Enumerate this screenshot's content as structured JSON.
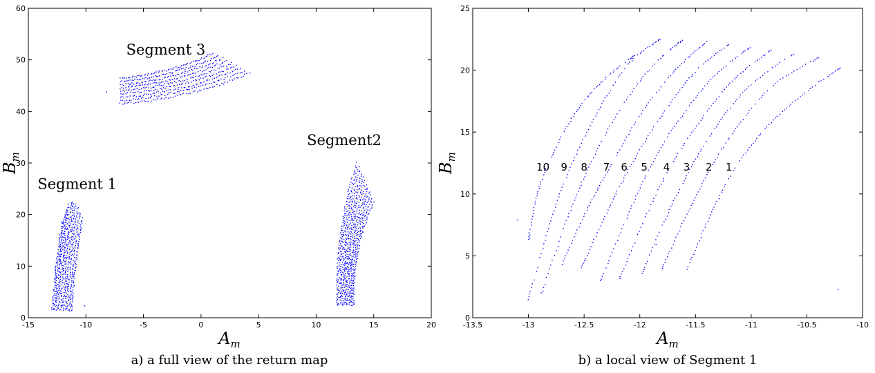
{
  "colors": {
    "points": "#0000ff",
    "axis": "#000000",
    "background": "#ffffff"
  },
  "chart_data": [
    {
      "type": "scatter",
      "caption": "a) a full view of the return map",
      "xlabel": {
        "main": "A",
        "sub": "m"
      },
      "ylabel": {
        "main": "B",
        "sub": "m"
      },
      "xlim": [
        -15,
        20
      ],
      "ylim": [
        0,
        60
      ],
      "xticks": [
        -15,
        -10,
        -5,
        0,
        5,
        10,
        15,
        20
      ],
      "yticks": [
        0,
        10,
        20,
        30,
        40,
        50,
        60
      ],
      "grid": false,
      "annotations": [
        {
          "text": "Segment 1",
          "x": -14.2,
          "y": 25
        },
        {
          "text": "Segment2",
          "x": 9.2,
          "y": 33.5
        },
        {
          "text": "Segment 3",
          "x": -6.5,
          "y": 51
        }
      ],
      "clusters": [
        {
          "label": "Segment 1",
          "curves": 10,
          "xmin": -12.9,
          "xmax": -10.2,
          "ymin": 1.5,
          "ymax": 22.5,
          "shape": "rising",
          "strays": [
            [
              -10.1,
              2.3
            ]
          ]
        },
        {
          "label": "Segment2",
          "curves": 12,
          "xmin": 11.8,
          "xmax": 15.0,
          "ymin": 2.5,
          "ymax": 30,
          "shape": "rising-narrow",
          "strays": []
        },
        {
          "label": "Segment 3",
          "curves": 9,
          "xmin": -7.0,
          "xmax": 4.2,
          "ymin": 41.5,
          "ymax": 52.3,
          "shape": "band",
          "strays": [
            [
              -8.2,
              43.8
            ]
          ]
        }
      ]
    },
    {
      "type": "scatter",
      "caption": "b) a local view of Segment 1",
      "xlabel": {
        "main": "A",
        "sub": "m"
      },
      "ylabel": {
        "main": "B",
        "sub": "m"
      },
      "xlim": [
        -13.5,
        -10
      ],
      "ylim": [
        0,
        25
      ],
      "xticks": [
        -13.5,
        -13,
        -12.5,
        -12,
        -11.5,
        -11,
        -10.5,
        -10
      ],
      "yticks": [
        0,
        5,
        10,
        15,
        20,
        25
      ],
      "grid": false,
      "labels": [
        {
          "text": "1",
          "x": -11.2,
          "y": 11.9
        },
        {
          "text": "2",
          "x": -11.38,
          "y": 11.9
        },
        {
          "text": "3",
          "x": -11.58,
          "y": 11.9
        },
        {
          "text": "4",
          "x": -11.76,
          "y": 11.9
        },
        {
          "text": "5",
          "x": -11.96,
          "y": 11.9
        },
        {
          "text": "6",
          "x": -12.14,
          "y": 11.9
        },
        {
          "text": "7",
          "x": -12.3,
          "y": 11.9
        },
        {
          "text": "8",
          "x": -12.5,
          "y": 11.9
        },
        {
          "text": "9",
          "x": -12.68,
          "y": 11.9
        },
        {
          "text": "10",
          "x": -12.87,
          "y": 11.9
        }
      ],
      "curves": [
        {
          "id": 1,
          "points": [
            [
              -11.58,
              3.8
            ],
            [
              -11.38,
              8.0
            ],
            [
              -11.15,
              12.0
            ],
            [
              -10.85,
              15.5
            ],
            [
              -10.5,
              18.3
            ],
            [
              -10.2,
              20.2
            ]
          ]
        },
        {
          "id": 2,
          "points": [
            [
              -11.8,
              4.0
            ],
            [
              -11.58,
              8.3
            ],
            [
              -11.35,
              12.3
            ],
            [
              -11.1,
              15.7
            ],
            [
              -10.8,
              18.8
            ],
            [
              -10.4,
              21.0
            ]
          ]
        },
        {
          "id": 3,
          "points": [
            [
              -11.98,
              3.6
            ],
            [
              -11.76,
              8.2
            ],
            [
              -11.53,
              12.3
            ],
            [
              -11.28,
              15.9
            ],
            [
              -10.98,
              19.0
            ],
            [
              -10.62,
              21.3
            ]
          ]
        },
        {
          "id": 4,
          "points": [
            [
              -12.18,
              3.2
            ],
            [
              -11.95,
              8.1
            ],
            [
              -11.72,
              12.3
            ],
            [
              -11.45,
              16.0
            ],
            [
              -11.15,
              19.3
            ],
            [
              -10.82,
              21.6
            ]
          ]
        },
        {
          "id": 5,
          "points": [
            [
              -12.35,
              3.0
            ],
            [
              -12.12,
              8.0
            ],
            [
              -11.9,
              12.3
            ],
            [
              -11.63,
              16.2
            ],
            [
              -11.32,
              19.6
            ],
            [
              -11.0,
              21.9
            ]
          ]
        },
        {
          "id": 6,
          "points": [
            [
              -12.52,
              4.1
            ],
            [
              -12.3,
              8.4
            ],
            [
              -12.08,
              12.3
            ],
            [
              -11.8,
              16.4
            ],
            [
              -11.5,
              19.9
            ],
            [
              -11.2,
              22.1
            ]
          ]
        },
        {
          "id": 7,
          "points": [
            [
              -12.7,
              4.3
            ],
            [
              -12.48,
              8.6
            ],
            [
              -12.26,
              12.3
            ],
            [
              -11.98,
              16.6
            ],
            [
              -11.67,
              20.1
            ],
            [
              -11.4,
              22.3
            ]
          ]
        },
        {
          "id": 8,
          "points": [
            [
              -12.88,
              2.0
            ],
            [
              -12.66,
              7.8
            ],
            [
              -12.45,
              12.3
            ],
            [
              -12.18,
              16.8
            ],
            [
              -11.88,
              20.4
            ],
            [
              -11.62,
              22.4
            ]
          ]
        },
        {
          "id": 9,
          "points": [
            [
              -13.0,
              1.5
            ],
            [
              -12.82,
              7.2
            ],
            [
              -12.63,
              12.0
            ],
            [
              -12.36,
              16.9
            ],
            [
              -12.1,
              20.5
            ],
            [
              -11.82,
              22.5
            ]
          ]
        },
        {
          "id": 10,
          "points": [
            [
              -13.0,
              6.3
            ],
            [
              -12.92,
              10.0
            ],
            [
              -12.78,
              13.3
            ],
            [
              -12.55,
              16.9
            ],
            [
              -12.3,
              19.4
            ],
            [
              -12.05,
              21.2
            ]
          ]
        }
      ],
      "strays": [
        [
          -13.1,
          7.9
        ],
        [
          -10.22,
          2.3
        ],
        [
          -11.85,
          5.9
        ]
      ]
    }
  ]
}
